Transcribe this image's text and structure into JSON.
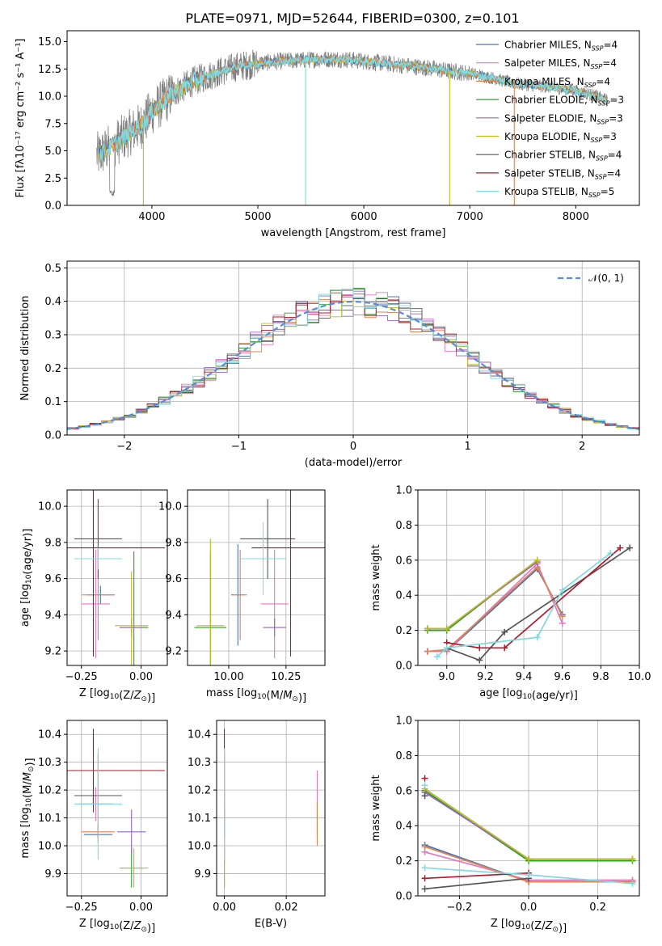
{
  "figure_title": "PLATE=0971, MJD=52644, FIBERID=0300, z=0.101",
  "colors": {
    "Chabrier MILES": "#4c72b0",
    "Salpeter MILES": "#e377c2",
    "Kroupa MILES": "#dd8452",
    "Chabrier ELODIE": "#2ca02c",
    "Salpeter ELODIE": "#9467bd",
    "Kroupa ELODIE": "#bcbd22",
    "Chabrier STELIB": "#555555",
    "Salpeter STELIB": "#b2182b",
    "Kroupa STELIB": "#7fdbe0",
    "normal": "#5b8bd5"
  },
  "chart_data": [
    {
      "id": "spectrum",
      "type": "line",
      "xlabel": "wavelength [Angstrom, rest frame]",
      "ylabel": "Flux [fλ10⁻¹⁷ erg cm⁻² s⁻¹ A⁻¹]",
      "xlim": [
        3200,
        8600
      ],
      "ylim": [
        0,
        16
      ],
      "xticks": [
        4000,
        5000,
        6000,
        7000,
        8000
      ],
      "yticks": [
        0.0,
        2.5,
        5.0,
        7.5,
        10.0,
        12.5,
        15.0
      ],
      "ytick_labels": [
        "0.0",
        "2.5",
        "5.0",
        "7.5",
        "10.0",
        "12.5",
        "15.0"
      ],
      "grid": false,
      "legend_position": "right",
      "legend": [
        {
          "name": "Chabrier MILES",
          "label": "Chabrier MILES, N",
          "sub": "SSP",
          "tail": "=4"
        },
        {
          "name": "Salpeter MILES",
          "label": "Salpeter MILES, N",
          "sub": "SSP",
          "tail": "=4"
        },
        {
          "name": "Kroupa MILES",
          "label": "Kroupa MILES, N",
          "sub": "SSP",
          "tail": "=4"
        },
        {
          "name": "Chabrier ELODIE",
          "label": "Chabrier ELODIE, N",
          "sub": "SSP",
          "tail": "=3"
        },
        {
          "name": "Salpeter ELODIE",
          "label": "Salpeter ELODIE, N",
          "sub": "SSP",
          "tail": "=3"
        },
        {
          "name": "Kroupa ELODIE",
          "label": "Kroupa ELODIE, N",
          "sub": "SSP",
          "tail": "=3"
        },
        {
          "name": "Chabrier STELIB",
          "label": "Chabrier STELIB, N",
          "sub": "SSP",
          "tail": "=4"
        },
        {
          "name": "Salpeter STELIB",
          "label": "Salpeter STELIB, N",
          "sub": "SSP",
          "tail": "=4"
        },
        {
          "name": "Kroupa STELIB",
          "label": "Kroupa STELIB, N",
          "sub": "SSP",
          "tail": "=5"
        }
      ],
      "continuum": {
        "x": [
          3500,
          3600,
          3700,
          3800,
          3900,
          4000,
          4100,
          4200,
          4400,
          4600,
          4800,
          5000,
          5200,
          5400,
          5600,
          5800,
          6000,
          6200,
          6400,
          6600,
          6800,
          7000,
          7200,
          7400,
          7600,
          7800,
          8000,
          8200,
          8300
        ],
        "y": [
          4.6,
          5.3,
          6.0,
          6.7,
          7.3,
          8.6,
          9.4,
          10.3,
          11.4,
          12.1,
          12.7,
          13.0,
          13.2,
          13.3,
          13.4,
          13.4,
          13.2,
          13.0,
          12.8,
          12.6,
          12.3,
          12.1,
          11.7,
          11.2,
          11.0,
          10.8,
          10.5,
          10.0,
          9.6
        ]
      },
      "absorption_spikes": [
        {
          "x": 3920,
          "y": 0.0
        },
        {
          "x": 5450,
          "y": 0.0
        },
        {
          "x": 6810,
          "y": 0.0
        },
        {
          "x": 7420,
          "y": 0.0
        }
      ]
    },
    {
      "id": "residuals",
      "type": "bar",
      "xlabel": "(data-model)/error",
      "ylabel": "Normed distribution",
      "xlim": [
        -2.5,
        2.5
      ],
      "ylim": [
        0,
        0.52
      ],
      "xticks": [
        -2,
        -1,
        0,
        1,
        2
      ],
      "xtick_labels": [
        "−2",
        "−1",
        "0",
        "1",
        "2"
      ],
      "yticks": [
        0.0,
        0.1,
        0.2,
        0.3,
        0.4,
        0.5
      ],
      "ytick_labels": [
        "0.0",
        "0.1",
        "0.2",
        "0.3",
        "0.4",
        "0.5"
      ],
      "grid": true,
      "legend_position": "top-right",
      "legend_label": "𝒩(0, 1)",
      "bin_width": 0.1,
      "normal": {
        "mean": 0,
        "sigma": 1
      }
    },
    {
      "id": "age_vs_Z",
      "type": "scatter",
      "xlabel": "Z [log10(Z/Z⊙)]",
      "ylabel": "age [log10(age/yr)]",
      "xlim": [
        -0.31,
        0.11
      ],
      "ylim": [
        9.12,
        10.09
      ],
      "xticks": [
        -0.25,
        0.0
      ],
      "xtick_labels": [
        "−0.25",
        "0.00"
      ],
      "yticks": [
        9.2,
        9.4,
        9.6,
        9.8,
        10.0
      ],
      "ytick_labels": [
        "9.2",
        "9.4",
        "9.6",
        "9.8",
        "10.0"
      ],
      "grid": true,
      "errorbars": [
        {
          "s": "Chabrier MILES",
          "x": -0.17,
          "xerr": 0.06,
          "y": 9.51,
          "yerr": 0.05
        },
        {
          "s": "Salpeter MILES",
          "x": -0.19,
          "xerr": 0.06,
          "y": 9.46,
          "yerr": 0.3
        },
        {
          "s": "Kroupa MILES",
          "x": -0.18,
          "xerr": 0.07,
          "y": 9.51,
          "yerr": 0.25
        },
        {
          "s": "Chabrier ELODIE",
          "x": -0.03,
          "xerr": 0.06,
          "y": 9.33,
          "yerr": 0.42
        },
        {
          "s": "Salpeter ELODIE",
          "x": -0.04,
          "xerr": 0.05,
          "y": 9.33,
          "yerr": 0.05
        },
        {
          "s": "Kroupa ELODIE",
          "x": -0.04,
          "xerr": 0.07,
          "y": 9.34,
          "yerr": 0.3
        },
        {
          "s": "Chabrier STELIB",
          "x": -0.18,
          "xerr": 0.1,
          "y": 9.82,
          "yerr": 0.22
        },
        {
          "s": "Salpeter STELIB",
          "x": -0.2,
          "xerr": 0.3,
          "y": 9.77,
          "yerr": 0.6
        },
        {
          "s": "Kroupa STELIB",
          "x": -0.18,
          "xerr": 0.1,
          "y": 9.71,
          "yerr": 0.06
        }
      ]
    },
    {
      "id": "age_vs_mass",
      "type": "scatter",
      "xlabel": "mass [log10(M/M⊙)]",
      "ylabel": "",
      "xlim": [
        9.82,
        10.42
      ],
      "ylim": [
        9.12,
        10.09
      ],
      "xticks": [
        10.0,
        10.25
      ],
      "xtick_labels": [
        "10.00",
        "10.25"
      ],
      "yticks": [
        9.2,
        9.4,
        9.6,
        9.8,
        10.0
      ],
      "ytick_labels": [
        "9.2",
        "9.4",
        "9.6",
        "9.8",
        "10.0"
      ],
      "grid": true,
      "errorbars": [
        {
          "s": "Chabrier MILES",
          "x": 10.04,
          "xerr": 0.03,
          "y": 9.51,
          "yerr": 0.28
        },
        {
          "s": "Salpeter MILES",
          "x": 10.2,
          "xerr": 0.06,
          "y": 9.46,
          "yerr": 0.3
        },
        {
          "s": "Kroupa MILES",
          "x": 10.05,
          "xerr": 0.03,
          "y": 9.51,
          "yerr": 0.25
        },
        {
          "s": "Chabrier ELODIE",
          "x": 9.92,
          "xerr": 0.07,
          "y": 9.33,
          "yerr": 0.42
        },
        {
          "s": "Salpeter ELODIE",
          "x": 10.2,
          "xerr": 0.05,
          "y": 9.33,
          "yerr": 0.05
        },
        {
          "s": "Kroupa ELODIE",
          "x": 9.92,
          "xerr": 0.06,
          "y": 9.34,
          "yerr": 0.48
        },
        {
          "s": "Chabrier STELIB",
          "x": 10.17,
          "xerr": 0.12,
          "y": 9.82,
          "yerr": 0.22
        },
        {
          "s": "Salpeter STELIB",
          "x": 10.27,
          "xerr": 0.17,
          "y": 9.77,
          "yerr": 0.6
        },
        {
          "s": "Kroupa STELIB",
          "x": 10.15,
          "xerr": 0.1,
          "y": 9.71,
          "yerr": 0.2
        }
      ]
    },
    {
      "id": "massweight_vs_age",
      "type": "line",
      "xlabel": "age [log10(age/yr)]",
      "ylabel": "mass weight",
      "xlim": [
        8.85,
        10.0
      ],
      "ylim": [
        0,
        1.0
      ],
      "xticks": [
        9.0,
        9.2,
        9.4,
        9.6,
        9.8,
        10.0
      ],
      "xtick_labels": [
        "9.0",
        "9.2",
        "9.4",
        "9.6",
        "9.8",
        "10.0"
      ],
      "yticks": [
        0.0,
        0.2,
        0.4,
        0.6,
        0.8,
        1.0
      ],
      "ytick_labels": [
        "0.0",
        "0.2",
        "0.4",
        "0.6",
        "0.8",
        "1.0"
      ],
      "grid": true,
      "series": [
        {
          "s": "Chabrier MILES",
          "x": [
            8.9,
            9.0,
            9.47,
            9.6
          ],
          "y": [
            0.08,
            0.08,
            0.55,
            0.29
          ]
        },
        {
          "s": "Salpeter MILES",
          "x": [
            8.9,
            9.0,
            9.47,
            9.6
          ],
          "y": [
            0.08,
            0.08,
            0.58,
            0.24
          ]
        },
        {
          "s": "Kroupa MILES",
          "x": [
            8.9,
            9.0,
            9.47,
            9.6
          ],
          "y": [
            0.08,
            0.09,
            0.56,
            0.28
          ]
        },
        {
          "s": "Chabrier ELODIE",
          "x": [
            8.9,
            9.0,
            9.47
          ],
          "y": [
            0.2,
            0.2,
            0.6
          ]
        },
        {
          "s": "Salpeter ELODIE",
          "x": [
            8.9,
            9.0,
            9.47
          ],
          "y": [
            0.21,
            0.21,
            0.59
          ]
        },
        {
          "s": "Kroupa ELODIE",
          "x": [
            8.9,
            9.0,
            9.47
          ],
          "y": [
            0.21,
            0.21,
            0.6
          ]
        },
        {
          "s": "Chabrier STELIB",
          "x": [
            9.0,
            9.17,
            9.3,
            9.95
          ],
          "y": [
            0.1,
            0.03,
            0.19,
            0.67
          ]
        },
        {
          "s": "Salpeter STELIB",
          "x": [
            9.0,
            9.17,
            9.3,
            9.9
          ],
          "y": [
            0.13,
            0.1,
            0.1,
            0.67
          ]
        },
        {
          "s": "Kroupa STELIB",
          "x": [
            8.95,
            9.0,
            9.47,
            9.6,
            9.85
          ],
          "y": [
            0.05,
            0.1,
            0.16,
            0.43,
            0.64
          ]
        }
      ]
    },
    {
      "id": "mass_vs_Z",
      "type": "scatter",
      "xlabel": "Z [log10(Z/Z⊙)]",
      "ylabel": "mass [log10(M/M⊙)]",
      "xlim": [
        -0.31,
        0.11
      ],
      "ylim": [
        9.82,
        10.45
      ],
      "xticks": [
        -0.25,
        0.0
      ],
      "xtick_labels": [
        "−0.25",
        "0.00"
      ],
      "yticks": [
        9.9,
        10.0,
        10.1,
        10.2,
        10.3,
        10.4
      ],
      "ytick_labels": [
        "9.9",
        "10.0",
        "10.1",
        "10.2",
        "10.3",
        "10.4"
      ],
      "grid": true,
      "errorbars": [
        {
          "s": "Chabrier MILES",
          "x": -0.18,
          "xerr": 0.06,
          "y": 10.04,
          "yerr": 0.03
        },
        {
          "s": "Salpeter MILES",
          "x": -0.19,
          "xerr": 0.07,
          "y": 10.15,
          "yerr": 0.06
        },
        {
          "s": "Kroupa MILES",
          "x": -0.18,
          "xerr": 0.07,
          "y": 10.05,
          "yerr": 0.03
        },
        {
          "s": "Chabrier ELODIE",
          "x": -0.04,
          "xerr": 0.05,
          "y": 9.92,
          "yerr": 0.07
        },
        {
          "s": "Salpeter ELODIE",
          "x": -0.04,
          "xerr": 0.06,
          "y": 10.05,
          "yerr": 0.08
        },
        {
          "s": "Kroupa ELODIE",
          "x": -0.03,
          "xerr": 0.06,
          "y": 9.92,
          "yerr": 0.07
        },
        {
          "s": "Chabrier STELIB",
          "x": -0.18,
          "xerr": 0.1,
          "y": 10.18,
          "yerr": 0.15
        },
        {
          "s": "Salpeter STELIB",
          "x": -0.2,
          "xerr": 0.3,
          "y": 10.27,
          "yerr": 0.15
        },
        {
          "s": "Kroupa STELIB",
          "x": -0.18,
          "xerr": 0.1,
          "y": 10.15,
          "yerr": 0.2
        }
      ]
    },
    {
      "id": "mass_vs_EBV",
      "type": "scatter",
      "xlabel": "E(B-V)",
      "ylabel": "",
      "xlim": [
        -0.0025,
        0.0325
      ],
      "ylim": [
        9.82,
        10.45
      ],
      "xticks": [
        0.0,
        0.02
      ],
      "xtick_labels": [
        "0.00",
        "0.02"
      ],
      "yticks": [
        9.9,
        10.0,
        10.1,
        10.2,
        10.3,
        10.4
      ],
      "ytick_labels": [
        "9.9",
        "10.0",
        "10.1",
        "10.2",
        "10.3",
        "10.4"
      ],
      "grid": true,
      "errorbars": [
        {
          "s": "Chabrier MILES",
          "x": 0.0,
          "xerr": 0,
          "y": 10.04,
          "yerr": 0.1
        },
        {
          "s": "Salpeter MILES",
          "x": 0.03,
          "xerr": 0,
          "y": 10.15,
          "yerr": 0.12
        },
        {
          "s": "Kroupa MILES",
          "x": 0.03,
          "xerr": 0,
          "y": 10.08,
          "yerr": 0.08
        },
        {
          "s": "Chabrier ELODIE",
          "x": 0.0,
          "xerr": 0,
          "y": 9.92,
          "yerr": 0.07
        },
        {
          "s": "Salpeter ELODIE",
          "x": 0.0,
          "xerr": 0,
          "y": 10.05,
          "yerr": 0.08
        },
        {
          "s": "Kroupa ELODIE",
          "x": 0.0,
          "xerr": 0,
          "y": 9.92,
          "yerr": 0.07
        },
        {
          "s": "Chabrier STELIB",
          "x": 0.0,
          "xerr": 0,
          "y": 10.18,
          "yerr": 0.15
        },
        {
          "s": "Salpeter STELIB",
          "x": 0.0,
          "xerr": 0,
          "y": 10.27,
          "yerr": 0.15
        },
        {
          "s": "Kroupa STELIB",
          "x": 0.0,
          "xerr": 0,
          "y": 10.15,
          "yerr": 0.2
        }
      ]
    },
    {
      "id": "massweight_vs_Z",
      "type": "line",
      "xlabel": "Z [log10(Z/Z⊙)]",
      "ylabel": "mass weight",
      "xlim": [
        -0.32,
        0.32
      ],
      "ylim": [
        0,
        1.0
      ],
      "xticks": [
        -0.2,
        0.0,
        0.2
      ],
      "xtick_labels": [
        "−0.2",
        "0.0",
        "0.2"
      ],
      "yticks": [
        0.0,
        0.2,
        0.4,
        0.6,
        0.8,
        1.0
      ],
      "ytick_labels": [
        "0.0",
        "0.2",
        "0.4",
        "0.6",
        "0.8",
        "1.0"
      ],
      "grid": true,
      "series": [
        {
          "s": "Chabrier MILES",
          "x": [
            -0.3,
            0.0,
            0.3
          ],
          "y": [
            0.29,
            0.08,
            0.08
          ]
        },
        {
          "s": "Salpeter MILES",
          "x": [
            -0.3,
            0.0,
            0.3
          ],
          "y": [
            0.25,
            0.09,
            0.09
          ]
        },
        {
          "s": "Kroupa MILES",
          "x": [
            -0.3,
            0.0,
            0.3
          ],
          "y": [
            0.28,
            0.08,
            0.08
          ]
        },
        {
          "s": "Chabrier ELODIE",
          "x": [
            -0.3,
            0.0,
            0.3
          ],
          "y": [
            0.6,
            0.2,
            0.2
          ]
        },
        {
          "s": "Salpeter ELODIE",
          "x": [
            -0.3,
            0.0,
            0.3
          ],
          "y": [
            0.59,
            0.21,
            0.21
          ]
        },
        {
          "s": "Kroupa ELODIE",
          "x": [
            -0.3,
            0.0,
            0.3
          ],
          "y": [
            0.61,
            0.21,
            0.21
          ]
        },
        {
          "s": "Chabrier STELIB",
          "x": [
            -0.3,
            0.0
          ],
          "y": [
            0.04,
            0.1
          ]
        },
        {
          "s": "Salpeter STELIB",
          "x": [
            -0.3,
            0.0
          ],
          "y": [
            0.1,
            0.13
          ]
        },
        {
          "s": "Kroupa STELIB",
          "x": [
            -0.3,
            0.0,
            0.3
          ],
          "y": [
            0.16,
            0.12,
            0.07
          ]
        }
      ],
      "extra_points": [
        {
          "s": "Salpeter STELIB",
          "x": -0.3,
          "y": 0.67
        },
        {
          "s": "Chabrier STELIB",
          "x": -0.3,
          "y": 0.57
        },
        {
          "s": "Kroupa STELIB",
          "x": -0.3,
          "y": 0.63
        }
      ]
    }
  ]
}
